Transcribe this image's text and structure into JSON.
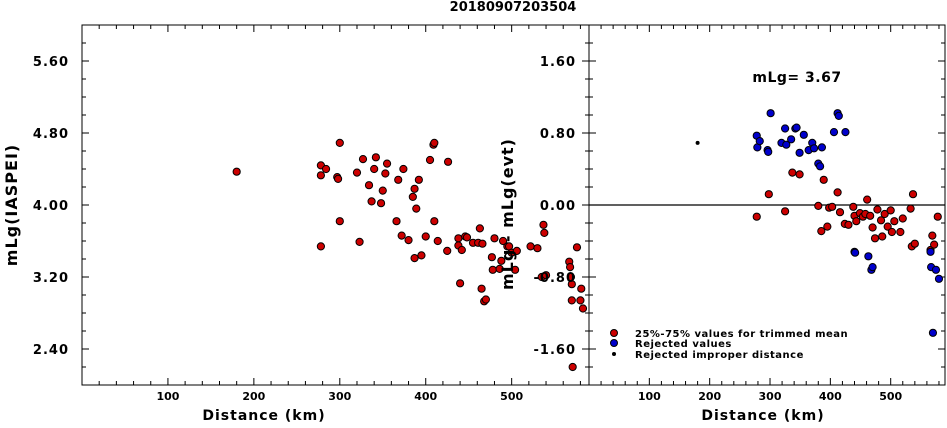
{
  "figure_title": "20180907203504",
  "chart_data": [
    {
      "type": "scatter",
      "xlabel": "Distance (km)",
      "ylabel": "mLg(IASPEI)",
      "xlim": [
        0,
        590
      ],
      "ylim": [
        2.0,
        6.0
      ],
      "xticks": [
        100,
        200,
        300,
        400,
        500
      ],
      "xtick_labels": [
        "100",
        "200",
        "300",
        "400",
        "500"
      ],
      "yticks": [
        2.4,
        3.2,
        4.0,
        4.8,
        5.6
      ],
      "ytick_labels": [
        "2.40",
        "3.20",
        "4.00",
        "4.80",
        "5.60"
      ],
      "series": [
        {
          "color": "#cc0000",
          "points": [
            [
              180,
              4.37
            ],
            [
              278,
              4.44
            ],
            [
              278,
              4.33
            ],
            [
              278,
              3.54
            ],
            [
              284,
              4.4
            ],
            [
              297,
              4.31
            ],
            [
              298,
              4.29
            ],
            [
              300,
              4.69
            ],
            [
              300,
              3.82
            ],
            [
              320,
              4.36
            ],
            [
              323,
              3.59
            ],
            [
              327,
              4.51
            ],
            [
              334,
              4.22
            ],
            [
              337,
              4.04
            ],
            [
              340,
              4.4
            ],
            [
              342,
              4.53
            ],
            [
              348,
              4.02
            ],
            [
              350,
              4.16
            ],
            [
              353,
              4.35
            ],
            [
              355,
              4.46
            ],
            [
              366,
              3.82
            ],
            [
              368,
              4.28
            ],
            [
              372,
              3.66
            ],
            [
              374,
              4.4
            ],
            [
              380,
              3.61
            ],
            [
              385,
              4.09
            ],
            [
              387,
              4.18
            ],
            [
              387,
              3.41
            ],
            [
              389,
              3.96
            ],
            [
              392,
              4.28
            ],
            [
              395,
              3.44
            ],
            [
              400,
              3.65
            ],
            [
              405,
              4.5
            ],
            [
              409,
              4.67
            ],
            [
              410,
              4.69
            ],
            [
              410,
              3.82
            ],
            [
              414,
              3.6
            ],
            [
              425,
              3.49
            ],
            [
              426,
              4.48
            ],
            [
              438,
              3.63
            ],
            [
              438,
              3.55
            ],
            [
              440,
              3.13
            ],
            [
              442,
              3.5
            ],
            [
              446,
              3.65
            ],
            [
              448,
              3.64
            ],
            [
              455,
              3.58
            ],
            [
              461,
              3.58
            ],
            [
              463,
              3.74
            ],
            [
              465,
              3.07
            ],
            [
              466,
              3.57
            ],
            [
              468,
              2.93
            ],
            [
              470,
              2.95
            ],
            [
              477,
              3.42
            ],
            [
              478,
              3.28
            ],
            [
              480,
              3.63
            ],
            [
              486,
              3.29
            ],
            [
              488,
              3.38
            ],
            [
              490,
              3.6
            ],
            [
              495,
              3.54
            ],
            [
              497,
              3.54
            ],
            [
              500,
              3.47
            ],
            [
              504,
              3.28
            ],
            [
              506,
              3.49
            ],
            [
              522,
              3.54
            ],
            [
              530,
              3.52
            ],
            [
              535,
              3.2
            ],
            [
              537,
              3.78
            ],
            [
              538,
              3.69
            ],
            [
              540,
              3.22
            ],
            [
              567,
              3.37
            ],
            [
              568,
              3.31
            ],
            [
              569,
              3.2
            ],
            [
              570,
              3.12
            ],
            [
              570,
              2.94
            ],
            [
              571,
              2.2
            ],
            [
              576,
              3.53
            ],
            [
              580,
              2.94
            ],
            [
              581,
              3.07
            ],
            [
              583,
              2.85
            ]
          ]
        }
      ]
    },
    {
      "type": "scatter",
      "xlabel": "Distance (km)",
      "ylabel": "mLg - mLg(evt)",
      "annotation": "mLg= 3.67",
      "reference_line": 0.0,
      "xlim": [
        0,
        590
      ],
      "ylim": [
        -2.0,
        2.0
      ],
      "xticks": [
        100,
        200,
        300,
        400,
        500
      ],
      "xtick_labels": [
        "100",
        "200",
        "300",
        "400",
        "500"
      ],
      "yticks": [
        -1.6,
        -0.8,
        0.0,
        0.8,
        1.6
      ],
      "ytick_labels": [
        "-1.60",
        "-0.80",
        "0.00",
        "0.80",
        "1.60"
      ],
      "legend_position": "bottom-left",
      "series": [
        {
          "name": "25%-75% values for trimmed mean",
          "color": "#cc0000",
          "marker": "circle",
          "points": [
            [
              278,
              -0.13
            ],
            [
              298,
              0.12
            ],
            [
              325,
              -0.07
            ],
            [
              337,
              0.36
            ],
            [
              349,
              0.34
            ],
            [
              380,
              -0.01
            ],
            [
              385,
              -0.29
            ],
            [
              389,
              0.28
            ],
            [
              395,
              -0.24
            ],
            [
              398,
              -0.03
            ],
            [
              403,
              -0.02
            ],
            [
              412,
              0.14
            ],
            [
              416,
              -0.08
            ],
            [
              424,
              -0.21
            ],
            [
              430,
              -0.22
            ],
            [
              438,
              -0.02
            ],
            [
              440,
              -0.12
            ],
            [
              443,
              -0.18
            ],
            [
              449,
              -0.09
            ],
            [
              454,
              -0.13
            ],
            [
              458,
              -0.1
            ],
            [
              461,
              0.06
            ],
            [
              466,
              -0.12
            ],
            [
              470,
              -0.25
            ],
            [
              474,
              -0.37
            ],
            [
              478,
              -0.05
            ],
            [
              484,
              -0.17
            ],
            [
              486,
              -0.35
            ],
            [
              490,
              -0.1
            ],
            [
              495,
              -0.24
            ],
            [
              500,
              -0.06
            ],
            [
              502,
              -0.3
            ],
            [
              506,
              -0.18
            ],
            [
              516,
              -0.3
            ],
            [
              520,
              -0.15
            ],
            [
              533,
              -0.04
            ],
            [
              535,
              -0.46
            ],
            [
              537,
              0.12
            ],
            [
              540,
              -0.43
            ],
            [
              566,
              -0.5
            ],
            [
              569,
              -0.34
            ],
            [
              572,
              -0.44
            ],
            [
              578,
              -0.13
            ]
          ]
        },
        {
          "name": "Rejected values",
          "color": "#0000cc",
          "marker": "circle",
          "points": [
            [
              278,
              0.77
            ],
            [
              279,
              0.64
            ],
            [
              283,
              0.71
            ],
            [
              296,
              0.61
            ],
            [
              297,
              0.59
            ],
            [
              301,
              1.02
            ],
            [
              319,
              0.69
            ],
            [
              325,
              0.85
            ],
            [
              327,
              0.67
            ],
            [
              335,
              0.73
            ],
            [
              342,
              0.85
            ],
            [
              344,
              0.86
            ],
            [
              349,
              0.58
            ],
            [
              356,
              0.78
            ],
            [
              364,
              0.61
            ],
            [
              370,
              0.69
            ],
            [
              373,
              0.63
            ],
            [
              380,
              0.46
            ],
            [
              383,
              0.43
            ],
            [
              386,
              0.64
            ],
            [
              406,
              0.81
            ],
            [
              412,
              1.02
            ],
            [
              414,
              0.99
            ],
            [
              425,
              0.81
            ],
            [
              440,
              -0.52
            ],
            [
              441,
              -0.53
            ],
            [
              463,
              -0.57
            ],
            [
              468,
              -0.72
            ],
            [
              470,
              -0.69
            ],
            [
              566,
              -0.52
            ],
            [
              567,
              -0.69
            ],
            [
              570,
              -1.42
            ],
            [
              575,
              -0.72
            ],
            [
              580,
              -0.82
            ]
          ]
        },
        {
          "name": "Rejected improper distance",
          "color": "#000000",
          "marker": "dot",
          "points": [
            [
              180,
              0.69
            ]
          ]
        }
      ]
    }
  ]
}
